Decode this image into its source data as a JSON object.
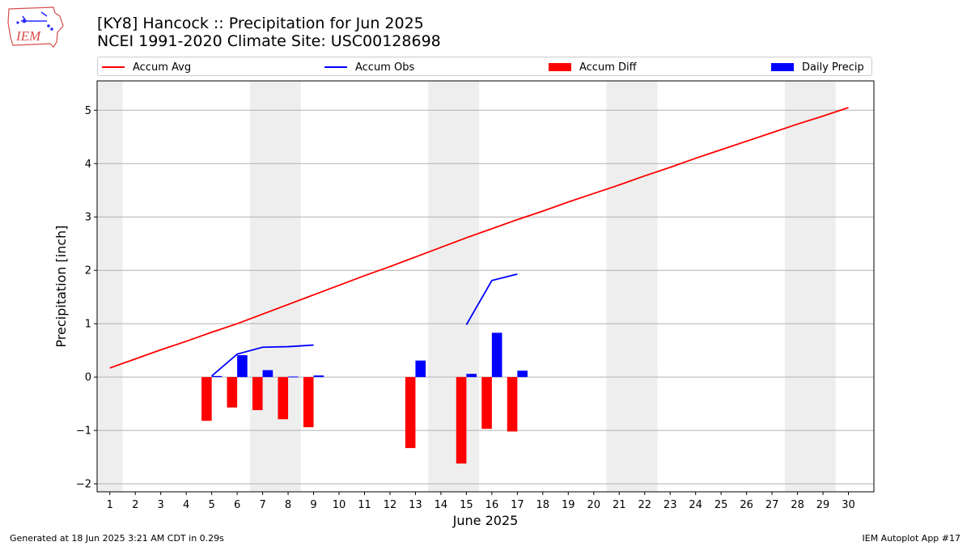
{
  "header": {
    "title_line1": "[KY8] Hancock :: Precipitation for Jun 2025",
    "title_line2": "NCEI 1991-2020 Climate Site: USC00128698",
    "logo_text": "IEM"
  },
  "footer": {
    "generated": "Generated at 18 Jun 2025 3:21 AM CDT in 0.29s",
    "app": "IEM Autoplot App #17"
  },
  "colors": {
    "avg": "#ff0000",
    "obs": "#0000ff",
    "diff": "#ff0000",
    "daily": "#0000ff",
    "weekend": "#eeeeee",
    "grid": "#b0b0b0"
  },
  "chart_data": {
    "type": "bar",
    "xlabel": "June 2025",
    "ylabel": "Precipitation [inch]",
    "xlim": [
      0.5,
      31
    ],
    "ylim": [
      -2.15,
      5.55
    ],
    "x_ticks": [
      1,
      2,
      3,
      4,
      5,
      6,
      7,
      8,
      9,
      10,
      11,
      12,
      13,
      14,
      15,
      16,
      17,
      18,
      19,
      20,
      21,
      22,
      23,
      24,
      25,
      26,
      27,
      28,
      29,
      30
    ],
    "y_ticks": [
      -2,
      -1,
      0,
      1,
      2,
      3,
      4,
      5
    ],
    "y_tick_labels": [
      "−2",
      "−1",
      "0",
      "1",
      "2",
      "3",
      "4",
      "5"
    ],
    "grid": "horizontal",
    "legend_position": "top",
    "weekend_bands": [
      [
        0.5,
        1.5
      ],
      [
        6.5,
        8.5
      ],
      [
        13.5,
        15.5
      ],
      [
        20.5,
        22.5
      ],
      [
        27.5,
        29.5
      ]
    ],
    "series": [
      {
        "name": "Accum Avg",
        "type": "line",
        "x": [
          1,
          2,
          3,
          4,
          5,
          6,
          7,
          8,
          9,
          10,
          11,
          12,
          13,
          14,
          15,
          16,
          17,
          18,
          19,
          20,
          21,
          22,
          23,
          24,
          25,
          26,
          27,
          28,
          29,
          30
        ],
        "values": [
          0.17,
          0.34,
          0.51,
          0.67,
          0.84,
          1.0,
          1.18,
          1.36,
          1.54,
          1.72,
          1.9,
          2.07,
          2.25,
          2.43,
          2.61,
          2.78,
          2.95,
          3.11,
          3.28,
          3.44,
          3.6,
          3.77,
          3.93,
          4.1,
          4.26,
          4.42,
          4.58,
          4.74,
          4.89,
          5.05
        ]
      },
      {
        "name": "Accum Obs",
        "type": "line",
        "segments": [
          {
            "x": [
              5,
              6,
              7,
              8,
              9
            ],
            "values": [
              0.02,
              0.43,
              0.56,
              0.57,
              0.6
            ]
          },
          {
            "x": [
              15,
              16,
              17
            ],
            "values": [
              0.98,
              1.81,
              1.93
            ]
          }
        ]
      },
      {
        "name": "Accum Diff",
        "type": "bar",
        "x": [
          5,
          6,
          7,
          8,
          9,
          13,
          15,
          16,
          17
        ],
        "values": [
          -0.82,
          -0.57,
          -0.62,
          -0.79,
          -0.94,
          -1.33,
          -1.62,
          -0.97,
          -1.02
        ]
      },
      {
        "name": "Daily Precip",
        "type": "bar",
        "x": [
          5,
          6,
          7,
          8,
          9,
          13,
          15,
          16,
          17
        ],
        "values": [
          0.02,
          0.41,
          0.13,
          0.01,
          0.03,
          0.31,
          0.06,
          0.83,
          0.12
        ]
      }
    ]
  }
}
